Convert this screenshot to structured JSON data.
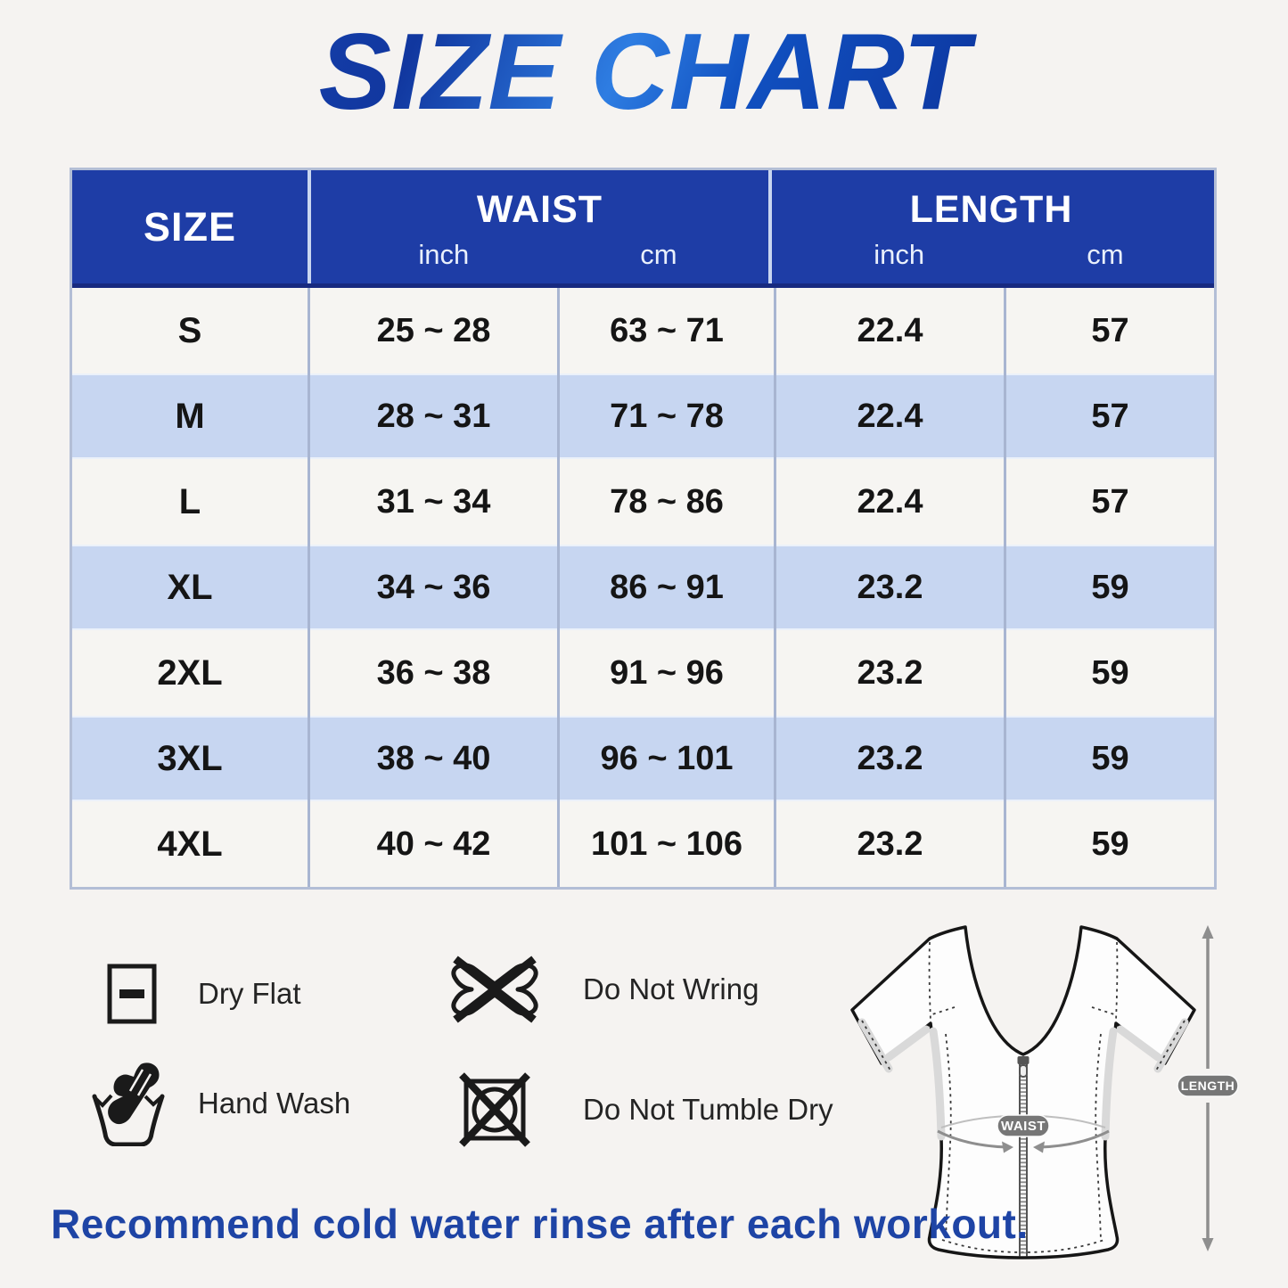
{
  "title": {
    "text": "SIZE CHART"
  },
  "table": {
    "header": {
      "size_label": "SIZE",
      "groups": [
        {
          "label": "WAIST",
          "units": [
            "inch",
            "cm"
          ]
        },
        {
          "label": "LENGTH",
          "units": [
            "inch",
            "cm"
          ]
        }
      ]
    },
    "colors": {
      "header_bg": "#1e3da6",
      "header_divider": "#c9d6f0",
      "row_light": "#f6f5f2",
      "row_blue": "#c7d6f1",
      "border": "#a8b5d1"
    }
  },
  "chart_data": {
    "type": "table",
    "title": "SIZE CHART",
    "columns": [
      "SIZE",
      "WAIST inch",
      "WAIST cm",
      "LENGTH inch",
      "LENGTH cm"
    ],
    "rows": [
      [
        "S",
        "25 ~ 28",
        "63 ~ 71",
        "22.4",
        "57"
      ],
      [
        "M",
        "28 ~ 31",
        "71 ~ 78",
        "22.4",
        "57"
      ],
      [
        "L",
        "31 ~ 34",
        "78 ~ 86",
        "22.4",
        "57"
      ],
      [
        "XL",
        "34 ~ 36",
        "86 ~ 91",
        "23.2",
        "59"
      ],
      [
        "2XL",
        "36 ~ 38",
        "91 ~ 96",
        "23.2",
        "59"
      ],
      [
        "3XL",
        "38 ~ 40",
        "96 ~ 101",
        "23.2",
        "59"
      ],
      [
        "4XL",
        "40 ~ 42",
        "101 ~ 106",
        "23.2",
        "59"
      ]
    ]
  },
  "care": {
    "items": [
      {
        "icon": "dry-flat-icon",
        "label": "Dry Flat"
      },
      {
        "icon": "do-not-wring-icon",
        "label": "Do Not Wring"
      },
      {
        "icon": "hand-wash-icon",
        "label": "Hand Wash"
      },
      {
        "icon": "do-not-tumble-dry-icon",
        "label": "Do Not Tumble Dry"
      }
    ]
  },
  "diagram": {
    "waist_label": "WAIST",
    "length_label": "LENGTH",
    "badge_color": "#767676",
    "arrow_color": "#8e8e8e"
  },
  "footer": {
    "text": "Recommend cold water rinse after each workout.",
    "color": "#1e44a5"
  }
}
